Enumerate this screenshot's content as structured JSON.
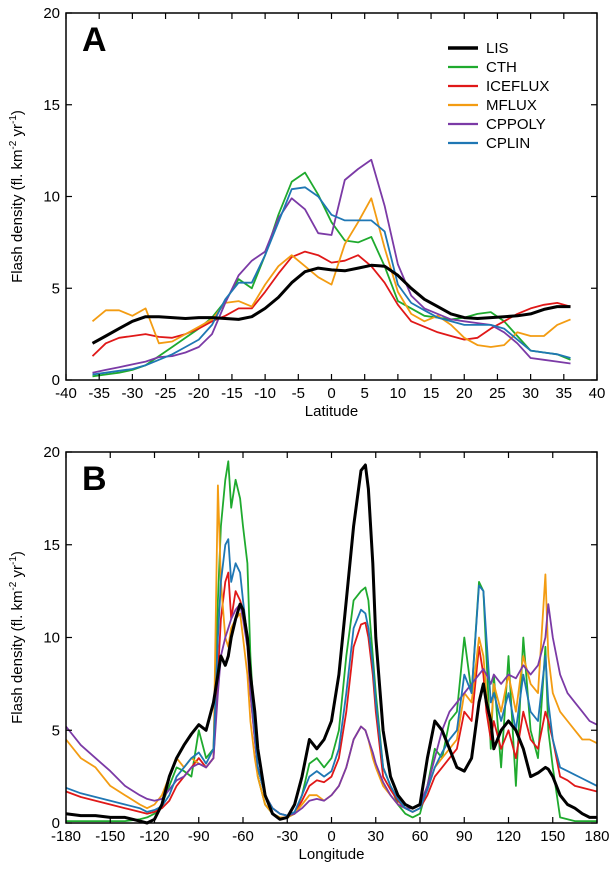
{
  "chart_data": [
    {
      "type": "line",
      "panel_label": "A",
      "xlabel": "Latitude",
      "ylabel": "Flash density (fl. km",
      "ylabel_sup1": "-2",
      "ylabel_mid": " yr",
      "ylabel_sup2": "-1",
      "ylabel_end": ")",
      "xlim": [
        -40,
        40
      ],
      "ylim": [
        0,
        20
      ],
      "xticks": [
        -40,
        -35,
        -30,
        -25,
        -20,
        -15,
        -10,
        -5,
        0,
        5,
        10,
        15,
        20,
        25,
        30,
        35,
        40
      ],
      "yticks": [
        0,
        5,
        10,
        15,
        20
      ],
      "legend": "top-right",
      "x": [
        -36,
        -34,
        -32,
        -30,
        -28,
        -26,
        -24,
        -22,
        -20,
        -18,
        -16,
        -14,
        -12,
        -10,
        -8,
        -6,
        -4,
        -2,
        0,
        2,
        4,
        6,
        8,
        10,
        12,
        14,
        16,
        18,
        20,
        22,
        24,
        26,
        28,
        30,
        32,
        34,
        36
      ],
      "series": [
        {
          "name": "LIS",
          "color": "#000000",
          "width": 3,
          "values": [
            2.0,
            2.4,
            2.8,
            3.2,
            3.45,
            3.45,
            3.4,
            3.35,
            3.4,
            3.4,
            3.35,
            3.3,
            3.45,
            3.9,
            4.5,
            5.3,
            5.9,
            6.1,
            6.0,
            5.95,
            6.1,
            6.25,
            6.2,
            5.7,
            5.0,
            4.4,
            4.0,
            3.6,
            3.4,
            3.35,
            3.4,
            3.45,
            3.5,
            3.6,
            3.85,
            4.0,
            4.0
          ]
        },
        {
          "name": "CTH",
          "color": "#1faa2e",
          "width": 1.8,
          "values": [
            0.2,
            0.3,
            0.4,
            0.55,
            0.8,
            1.3,
            1.8,
            2.3,
            2.8,
            3.4,
            4.3,
            5.5,
            5.0,
            6.8,
            9.0,
            10.8,
            11.3,
            10.1,
            8.6,
            7.6,
            7.5,
            7.8,
            6.2,
            4.3,
            3.9,
            3.5,
            3.4,
            3.3,
            3.4,
            3.6,
            3.7,
            3.2,
            2.4,
            1.6,
            1.5,
            1.4,
            1.1
          ]
        },
        {
          "name": "ICEFLUX",
          "color": "#e01818",
          "width": 1.8,
          "values": [
            1.3,
            2.0,
            2.3,
            2.4,
            2.5,
            2.35,
            2.3,
            2.5,
            2.8,
            3.2,
            3.5,
            3.9,
            3.9,
            4.8,
            5.8,
            6.7,
            7.0,
            6.8,
            6.4,
            6.5,
            6.8,
            6.2,
            5.3,
            4.1,
            3.2,
            2.9,
            2.6,
            2.4,
            2.2,
            2.3,
            2.8,
            3.2,
            3.6,
            3.9,
            4.1,
            4.2,
            4.0
          ]
        },
        {
          "name": "MFLUX",
          "color": "#f39c12",
          "width": 1.8,
          "values": [
            3.2,
            3.8,
            3.8,
            3.5,
            3.9,
            2.0,
            2.1,
            2.5,
            2.9,
            3.3,
            4.2,
            4.3,
            4.0,
            5.2,
            6.2,
            6.8,
            6.2,
            5.6,
            5.2,
            7.4,
            8.6,
            9.9,
            7.2,
            4.8,
            3.6,
            3.2,
            3.5,
            3.0,
            2.3,
            1.9,
            1.8,
            1.9,
            2.6,
            2.4,
            2.4,
            3.0,
            3.3
          ]
        },
        {
          "name": "CPPOLY",
          "color": "#7b3aa6",
          "width": 1.8,
          "values": [
            0.4,
            0.55,
            0.7,
            0.85,
            1.0,
            1.25,
            1.3,
            1.5,
            1.8,
            2.5,
            4.2,
            5.7,
            6.5,
            7.0,
            8.8,
            9.9,
            9.3,
            8.0,
            7.9,
            10.9,
            11.5,
            12.0,
            9.5,
            6.3,
            4.6,
            3.9,
            3.6,
            3.3,
            3.2,
            3.1,
            3.0,
            2.6,
            2.0,
            1.2,
            1.1,
            1.0,
            0.9
          ]
        },
        {
          "name": "CPLIN",
          "color": "#1f77b4",
          "width": 1.8,
          "values": [
            0.3,
            0.4,
            0.5,
            0.6,
            0.8,
            1.1,
            1.4,
            1.8,
            2.2,
            3.0,
            4.4,
            5.3,
            5.3,
            6.8,
            8.6,
            10.4,
            10.5,
            10.0,
            9.0,
            8.7,
            8.7,
            8.7,
            8.1,
            5.2,
            4.2,
            3.8,
            3.4,
            3.2,
            3.0,
            3.0,
            3.0,
            2.8,
            2.2,
            1.6,
            1.5,
            1.4,
            1.2
          ]
        }
      ]
    },
    {
      "type": "line",
      "panel_label": "B",
      "xlabel": "Longitude",
      "ylabel": "Flash density (fl. km",
      "ylabel_sup1": "-2",
      "ylabel_mid": " yr",
      "ylabel_sup2": "-1",
      "ylabel_end": ")",
      "xlim": [
        -180,
        180
      ],
      "ylim": [
        0,
        20
      ],
      "xticks": [
        -180,
        -150,
        -120,
        -90,
        -60,
        -30,
        0,
        30,
        60,
        90,
        120,
        150,
        180
      ],
      "yticks": [
        0,
        5,
        10,
        15,
        20
      ],
      "x": [
        -180,
        -170,
        -160,
        -150,
        -140,
        -130,
        -125,
        -120,
        -115,
        -110,
        -105,
        -100,
        -95,
        -90,
        -85,
        -80,
        -77,
        -75,
        -72,
        -70,
        -68,
        -65,
        -62,
        -60,
        -57,
        -55,
        -52,
        -50,
        -45,
        -40,
        -35,
        -30,
        -25,
        -20,
        -15,
        -10,
        -5,
        0,
        5,
        10,
        15,
        20,
        23,
        25,
        28,
        30,
        35,
        40,
        45,
        50,
        55,
        60,
        65,
        70,
        75,
        80,
        85,
        90,
        95,
        100,
        103,
        105,
        108,
        110,
        115,
        120,
        125,
        130,
        135,
        140,
        145,
        147,
        150,
        155,
        160,
        165,
        170,
        175,
        180
      ],
      "series": [
        {
          "name": "LIS",
          "color": "#000000",
          "width": 3,
          "values": [
            0.5,
            0.4,
            0.4,
            0.3,
            0.3,
            0.1,
            0.0,
            0.2,
            1.0,
            2.5,
            3.5,
            4.2,
            4.8,
            5.3,
            5.0,
            6.5,
            8.0,
            9.0,
            8.5,
            9.0,
            10.0,
            11.0,
            11.8,
            11.5,
            10.0,
            8.0,
            6.0,
            4.0,
            1.5,
            0.5,
            0.2,
            0.3,
            1.0,
            2.5,
            4.5,
            4.0,
            4.5,
            5.5,
            8.0,
            12.0,
            16.0,
            19.0,
            19.3,
            18.0,
            14.0,
            10.0,
            5.0,
            2.5,
            1.5,
            1.0,
            0.8,
            1.0,
            3.5,
            5.5,
            5.0,
            4.0,
            3.0,
            2.8,
            3.5,
            6.5,
            7.5,
            6.5,
            5.5,
            4.0,
            5.0,
            5.5,
            5.0,
            4.0,
            2.5,
            2.7,
            3.0,
            2.9,
            2.5,
            1.5,
            1.0,
            0.8,
            0.5,
            0.3,
            0.3
          ]
        },
        {
          "name": "CTH",
          "color": "#1faa2e",
          "width": 1.8,
          "values": [
            0.1,
            0.1,
            0.1,
            0.1,
            0.1,
            0.2,
            0.3,
            0.5,
            1.0,
            2.0,
            3.0,
            2.8,
            2.5,
            5.0,
            3.5,
            4.0,
            12.0,
            16.0,
            18.5,
            19.5,
            17.0,
            18.5,
            17.5,
            16.0,
            14.0,
            9.0,
            5.0,
            2.5,
            1.0,
            0.5,
            0.3,
            0.3,
            0.5,
            1.5,
            3.2,
            3.5,
            3.0,
            3.5,
            5.0,
            9.0,
            12.0,
            12.5,
            12.7,
            12.0,
            9.0,
            7.0,
            3.0,
            2.0,
            1.0,
            0.5,
            0.3,
            0.5,
            2.0,
            4.0,
            3.5,
            5.5,
            6.0,
            10.0,
            7.0,
            13.0,
            12.5,
            9.0,
            4.0,
            8.0,
            3.0,
            9.0,
            2.0,
            10.0,
            5.0,
            3.5,
            9.5,
            5.0,
            3.0,
            0.3,
            0.2,
            0.1,
            0.1,
            0.1,
            0.1
          ]
        },
        {
          "name": "ICEFLUX",
          "color": "#e01818",
          "width": 1.8,
          "values": [
            1.7,
            1.4,
            1.2,
            1.0,
            0.8,
            0.6,
            0.5,
            0.6,
            0.8,
            1.2,
            2.0,
            2.5,
            3.0,
            3.5,
            3.0,
            3.5,
            8.0,
            11.0,
            13.0,
            13.5,
            11.0,
            12.5,
            12.0,
            11.5,
            10.0,
            7.0,
            4.5,
            3.0,
            1.5,
            0.8,
            0.5,
            0.4,
            0.5,
            1.2,
            2.0,
            2.3,
            2.2,
            2.5,
            3.5,
            6.0,
            9.5,
            10.7,
            10.8,
            10.0,
            8.0,
            6.0,
            2.5,
            1.8,
            1.2,
            0.8,
            0.6,
            0.8,
            1.5,
            2.5,
            3.0,
            3.5,
            4.0,
            6.0,
            5.5,
            9.5,
            8.0,
            6.0,
            4.5,
            5.5,
            4.0,
            5.0,
            3.5,
            6.0,
            4.5,
            4.0,
            6.0,
            5.5,
            4.5,
            2.5,
            2.3,
            2.0,
            1.9,
            1.8,
            1.7
          ]
        },
        {
          "name": "MFLUX",
          "color": "#f39c12",
          "width": 1.8,
          "values": [
            4.5,
            3.5,
            3.0,
            2.0,
            1.5,
            1.0,
            0.8,
            1.0,
            1.5,
            2.5,
            3.5,
            3.0,
            3.5,
            3.2,
            3.0,
            3.5,
            18.2,
            13.0,
            10.0,
            9.5,
            10.5,
            11.0,
            11.3,
            10.0,
            8.0,
            5.5,
            3.5,
            2.5,
            1.0,
            0.5,
            0.3,
            0.3,
            0.5,
            1.0,
            1.5,
            1.5,
            1.2,
            1.5,
            2.0,
            3.0,
            4.5,
            5.2,
            5.0,
            4.5,
            3.5,
            3.0,
            2.0,
            1.5,
            1.0,
            0.8,
            0.8,
            1.0,
            1.8,
            3.0,
            3.5,
            4.0,
            4.5,
            7.0,
            6.5,
            10.0,
            9.0,
            7.0,
            5.0,
            7.5,
            6.0,
            8.0,
            6.0,
            9.0,
            7.5,
            7.0,
            13.4,
            9.0,
            7.0,
            6.0,
            5.5,
            5.0,
            4.5,
            4.5,
            4.3
          ]
        },
        {
          "name": "CPPOLY",
          "color": "#7b3aa6",
          "width": 1.8,
          "values": [
            5.2,
            4.2,
            3.5,
            2.8,
            2.0,
            1.5,
            1.3,
            1.2,
            1.3,
            1.8,
            2.3,
            2.5,
            3.0,
            3.2,
            3.0,
            3.5,
            7.0,
            9.0,
            10.0,
            10.5,
            11.0,
            11.5,
            11.8,
            11.0,
            9.5,
            7.0,
            4.5,
            3.0,
            1.5,
            0.8,
            0.5,
            0.4,
            0.5,
            0.8,
            1.2,
            1.3,
            1.2,
            1.5,
            2.0,
            3.0,
            4.5,
            5.2,
            5.0,
            4.5,
            3.8,
            3.2,
            2.2,
            1.5,
            1.0,
            0.8,
            0.8,
            1.0,
            2.0,
            3.5,
            5.0,
            6.0,
            6.5,
            7.0,
            7.5,
            8.0,
            8.3,
            8.0,
            7.5,
            8.0,
            7.5,
            8.0,
            7.8,
            8.5,
            8.0,
            8.5,
            10.0,
            11.8,
            10.0,
            8.0,
            7.0,
            6.5,
            6.0,
            5.5,
            5.3
          ]
        },
        {
          "name": "CPLIN",
          "color": "#1f77b4",
          "width": 1.8,
          "values": [
            1.9,
            1.6,
            1.4,
            1.2,
            1.0,
            0.8,
            0.6,
            0.7,
            0.9,
            1.5,
            2.5,
            3.0,
            3.5,
            3.8,
            3.2,
            4.0,
            10.0,
            13.0,
            15.0,
            15.3,
            13.0,
            14.0,
            13.5,
            12.0,
            10.0,
            8.0,
            5.0,
            3.0,
            1.5,
            0.8,
            0.5,
            0.4,
            0.6,
            1.5,
            2.5,
            2.8,
            2.5,
            2.8,
            4.0,
            7.0,
            10.5,
            11.5,
            11.3,
            10.5,
            8.5,
            6.5,
            3.0,
            2.0,
            1.3,
            0.8,
            0.6,
            0.8,
            1.8,
            3.0,
            3.8,
            4.5,
            5.0,
            8.0,
            7.0,
            12.8,
            12.5,
            10.0,
            6.5,
            7.0,
            5.5,
            7.0,
            5.0,
            8.0,
            6.0,
            5.5,
            9.0,
            6.5,
            4.5,
            3.0,
            2.8,
            2.6,
            2.4,
            2.2,
            2.0
          ]
        }
      ]
    }
  ]
}
